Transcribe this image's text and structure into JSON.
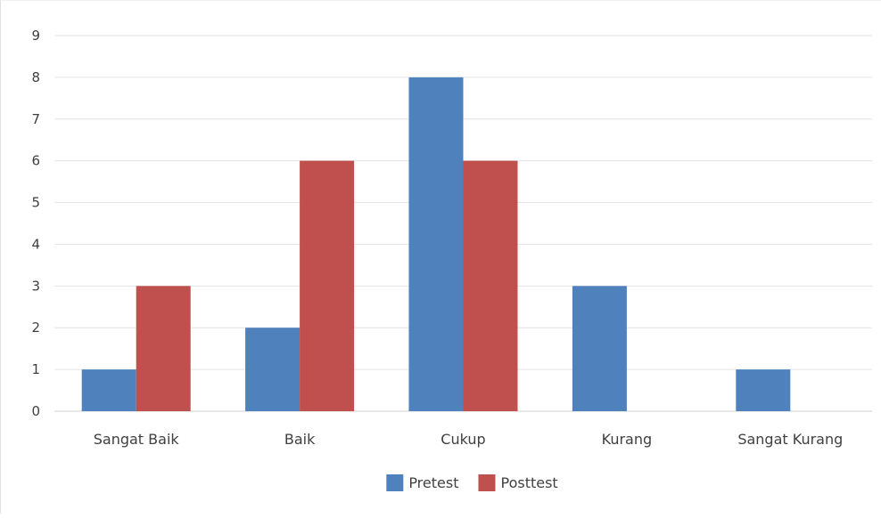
{
  "chart_data": {
    "type": "bar",
    "categories": [
      "Sangat Baik",
      "Baik",
      "Cukup",
      "Kurang",
      "Sangat Kurang"
    ],
    "series": [
      {
        "name": "Pretest",
        "color": "#4F81BD",
        "values": [
          1,
          2,
          8,
          3,
          1
        ]
      },
      {
        "name": "Posttest",
        "color": "#C0504D",
        "values": [
          3,
          6,
          6,
          0,
          0
        ]
      }
    ],
    "ylim": [
      0,
      9
    ],
    "yticks": [
      0,
      1,
      2,
      3,
      4,
      5,
      6,
      7,
      8,
      9
    ],
    "grid": true,
    "legend": "bottom",
    "title": "",
    "xlabel": "",
    "ylabel": ""
  }
}
